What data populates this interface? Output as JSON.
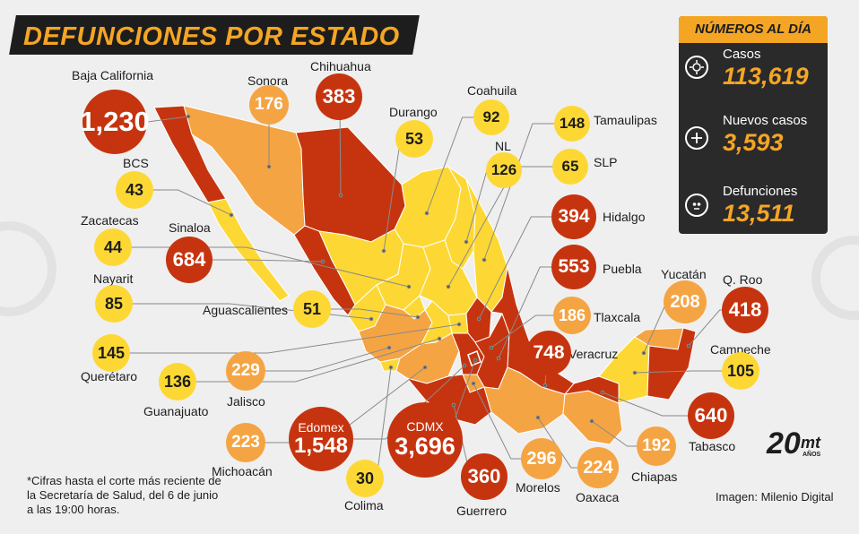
{
  "title": "DEFUNCIONES POR ESTADO",
  "panel": {
    "heading": "NÚMEROS AL DÍA",
    "stats": [
      {
        "label": "Casos",
        "value": "113,619",
        "icon": "virus-icon"
      },
      {
        "label": "Nuevos casos",
        "value": "3,593",
        "icon": "plus-icon"
      },
      {
        "label": "Defunciones",
        "value": "13,511",
        "icon": "skull-icon"
      }
    ]
  },
  "states": [
    {
      "name": "Baja California",
      "value": "1,230",
      "color": "red"
    },
    {
      "name": "Sonora",
      "value": "176",
      "color": "orange"
    },
    {
      "name": "Chihuahua",
      "value": "383",
      "color": "red"
    },
    {
      "name": "Durango",
      "value": "53",
      "color": "yellow"
    },
    {
      "name": "Coahuila",
      "value": "92",
      "color": "yellow"
    },
    {
      "name": "Tamaulipas",
      "value": "148",
      "color": "yellow"
    },
    {
      "name": "NL",
      "value": "126",
      "color": "yellow"
    },
    {
      "name": "SLP",
      "value": "65",
      "color": "yellow"
    },
    {
      "name": "BCS",
      "value": "43",
      "color": "yellow"
    },
    {
      "name": "Hidalgo",
      "value": "394",
      "color": "red"
    },
    {
      "name": "Zacatecas",
      "value": "44",
      "color": "yellow"
    },
    {
      "name": "Sinaloa",
      "value": "684",
      "color": "red"
    },
    {
      "name": "Puebla",
      "value": "553",
      "color": "red"
    },
    {
      "name": "Nayarit",
      "value": "85",
      "color": "yellow"
    },
    {
      "name": "Aguascalientes",
      "value": "51",
      "color": "yellow"
    },
    {
      "name": "Yucatán",
      "value": "208",
      "color": "orange"
    },
    {
      "name": "Q. Roo",
      "value": "418",
      "color": "red"
    },
    {
      "name": "Tlaxcala",
      "value": "186",
      "color": "orange"
    },
    {
      "name": "Querétaro",
      "value": "145",
      "color": "yellow"
    },
    {
      "name": "Veracruz",
      "value": "748",
      "color": "red"
    },
    {
      "name": "Campeche",
      "value": "105",
      "color": "yellow"
    },
    {
      "name": "Guanajuato",
      "value": "136",
      "color": "yellow"
    },
    {
      "name": "Jalisco",
      "value": "229",
      "color": "orange"
    },
    {
      "name": "Tabasco",
      "value": "640",
      "color": "red"
    },
    {
      "name": "Edomex",
      "value": "1,548",
      "color": "red"
    },
    {
      "name": "Michoacán",
      "value": "223",
      "color": "orange"
    },
    {
      "name": "CDMX",
      "value": "3,696",
      "color": "red"
    },
    {
      "name": "Chiapas",
      "value": "192",
      "color": "orange"
    },
    {
      "name": "Morelos",
      "value": "296",
      "color": "orange"
    },
    {
      "name": "Oaxaca",
      "value": "224",
      "color": "orange"
    },
    {
      "name": "Colima",
      "value": "30",
      "color": "yellow"
    },
    {
      "name": "Guerrero",
      "value": "360",
      "color": "red"
    }
  ],
  "note": "*Cifras hasta el corte más reciente de la Secretaría de Salud, del 6 de junio a las 19:00 horas.",
  "credit": "Imagen: Milenio Digital",
  "logo": {
    "numeral": "20",
    "brand": "mt",
    "suffix": "AÑOS"
  },
  "colors": {
    "red": "#c6340f",
    "orange": "#f5a443",
    "yellow": "#fdd835",
    "accent": "#f5a524",
    "dark": "#2a2a2a"
  }
}
